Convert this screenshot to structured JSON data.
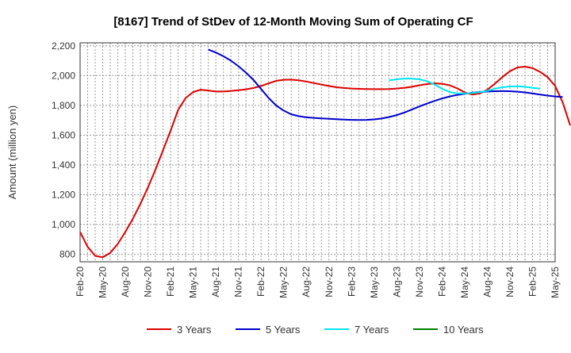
{
  "chart_data": {
    "type": "line",
    "title": "[8167]  Trend of StDev of 12-Month Moving Sum of Operating CF",
    "xlabel": "",
    "ylabel": "Amount (million yen)",
    "ylim": [
      750,
      2220
    ],
    "yticks": [
      800,
      1000,
      1200,
      1400,
      1600,
      1800,
      2000,
      2200
    ],
    "ytick_labels": [
      "800",
      "1,000",
      "1,200",
      "1,400",
      "1,600",
      "1,800",
      "2,000",
      "2,200"
    ],
    "xticks": [
      "Feb-20",
      "May-20",
      "Aug-20",
      "Nov-20",
      "Feb-21",
      "May-21",
      "Aug-21",
      "Nov-21",
      "Feb-22",
      "May-22",
      "Aug-22",
      "Nov-22",
      "Feb-23",
      "May-23",
      "Aug-23",
      "Nov-23",
      "Feb-24",
      "May-24",
      "Aug-24",
      "Nov-24",
      "Feb-25",
      "May-25"
    ],
    "x_range": [
      "Feb-20",
      "May-25"
    ],
    "grid": true,
    "legend_position": "bottom",
    "series": [
      {
        "name": "3 Years",
        "color": "#dd0000",
        "start": "Feb-20",
        "values": [
          950,
          850,
          790,
          780,
          810,
          870,
          950,
          1040,
          1140,
          1250,
          1370,
          1500,
          1630,
          1770,
          1850,
          1890,
          1905,
          1900,
          1893,
          1893,
          1897,
          1902,
          1908,
          1917,
          1930,
          1948,
          1965,
          1972,
          1973,
          1968,
          1960,
          1950,
          1940,
          1930,
          1922,
          1917,
          1913,
          1911,
          1910,
          1909,
          1909,
          1910,
          1913,
          1918,
          1925,
          1935,
          1943,
          1948,
          1945,
          1935,
          1915,
          1887,
          1873,
          1880,
          1905,
          1945,
          1990,
          2030,
          2055,
          2060,
          2050,
          2025,
          1990,
          1930,
          1820,
          1665
        ]
      },
      {
        "name": "5 Years",
        "color": "#0000cc",
        "start": "Jul-21",
        "values": [
          2175,
          2155,
          2130,
          2100,
          2063,
          2020,
          1970,
          1910,
          1850,
          1800,
          1765,
          1740,
          1728,
          1720,
          1716,
          1713,
          1710,
          1707,
          1705,
          1703,
          1702,
          1703,
          1706,
          1712,
          1722,
          1735,
          1752,
          1772,
          1793,
          1812,
          1830,
          1846,
          1860,
          1870,
          1878,
          1885,
          1890,
          1893,
          1895,
          1896,
          1895,
          1892,
          1887,
          1880,
          1873,
          1866,
          1860,
          1856
        ]
      },
      {
        "name": "7 Years",
        "color": "#00e5ee",
        "start": "Jul-23",
        "values": [
          1968,
          1975,
          1980,
          1980,
          1975,
          1963,
          1940,
          1912,
          1890,
          1880,
          1880,
          1883,
          1888,
          1898,
          1912,
          1922,
          1927,
          1928,
          1925,
          1918,
          1912
        ]
      },
      {
        "name": "10 Years",
        "color": "#008000",
        "start": "",
        "values": []
      }
    ]
  }
}
